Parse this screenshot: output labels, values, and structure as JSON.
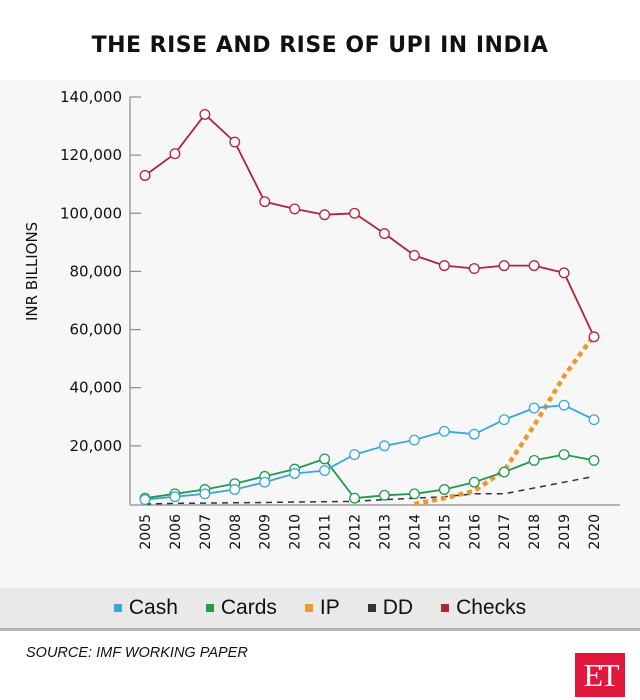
{
  "header": {
    "title": "THE RISE AND RISE OF UPI IN INDIA"
  },
  "footer": {
    "source": "SOURCE: IMF WORKING PAPER",
    "logo_text": "ET",
    "logo_color": "#e0183c"
  },
  "chart_data": {
    "type": "line",
    "title": "THE RISE AND RISE OF UPI IN INDIA",
    "xlabel": "",
    "ylabel": "INR BILLIONS",
    "x": [
      "2005",
      "2006",
      "2007",
      "2008",
      "2009",
      "2010",
      "2011",
      "2012",
      "2013",
      "2014",
      "2015",
      "2016",
      "2017",
      "2018",
      "2019",
      "2020"
    ],
    "yticks": [
      20000,
      40000,
      60000,
      80000,
      100000,
      120000,
      140000
    ],
    "ytick_labels": [
      "20,000",
      "40,000",
      "60,000",
      "80,000",
      "100,000",
      "120,000",
      "140,000"
    ],
    "ylim": [
      0,
      140000
    ],
    "grid": false,
    "legend_position": "bottom",
    "series": [
      {
        "name": "Cash",
        "color": "#3aa7d9",
        "style": "solid-markers",
        "values": [
          1500,
          2500,
          3500,
          5000,
          7500,
          10500,
          11500,
          17000,
          20000,
          22000,
          25000,
          24000,
          29000,
          33000,
          34000,
          29000
        ]
      },
      {
        "name": "Cards",
        "color": "#1f9a4e",
        "style": "solid-markers",
        "values": [
          2000,
          3500,
          5000,
          7000,
          9500,
          12000,
          15500,
          2000,
          3000,
          3500,
          5000,
          7500,
          11000,
          15000,
          17000,
          15000
        ]
      },
      {
        "name": "IP",
        "color": "#f0962e",
        "style": "dotted",
        "values": [
          null,
          null,
          null,
          null,
          null,
          null,
          null,
          null,
          null,
          0,
          2000,
          4500,
          11500,
          27000,
          44000,
          58000
        ]
      },
      {
        "name": "DD",
        "color": "#333333",
        "style": "dashed",
        "values": [
          0,
          200,
          300,
          400,
          500,
          700,
          800,
          900,
          1500,
          2000,
          2500,
          3500,
          3500,
          5500,
          7500,
          9500
        ]
      },
      {
        "name": "Checks",
        "color": "#b0233a",
        "style": "solid-markers",
        "values": [
          113000,
          120500,
          134000,
          124500,
          104000,
          101500,
          99500,
          100000,
          93000,
          85500,
          82000,
          81000,
          82000,
          82000,
          79500,
          57500
        ]
      }
    ]
  }
}
